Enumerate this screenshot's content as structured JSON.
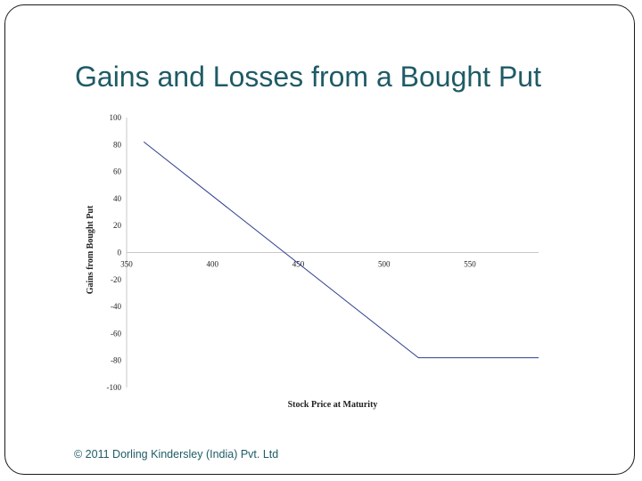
{
  "slide": {
    "title": "Gains and Losses from a Bought Put",
    "footer": "© 2011 Dorling Kindersley (India) Pvt. Ltd"
  },
  "colors": {
    "title": "#1f5b66",
    "line": "#2e3f8f",
    "axis": "#c8c8c8"
  },
  "chart_data": {
    "type": "line",
    "xlabel": "Stock Price at Maturity",
    "ylabel": "Gains from Bought Put",
    "xlim": [
      350,
      590
    ],
    "ylim": [
      -100,
      100
    ],
    "xticks": [
      350,
      400,
      450,
      500,
      550
    ],
    "yticks": [
      100,
      80,
      60,
      40,
      20,
      0,
      -20,
      -40,
      -60,
      -80,
      -100
    ],
    "grid": false,
    "legend": "none",
    "series": [
      {
        "x": [
          360,
          520,
          590
        ],
        "y": [
          82,
          -78,
          -78
        ]
      }
    ]
  }
}
